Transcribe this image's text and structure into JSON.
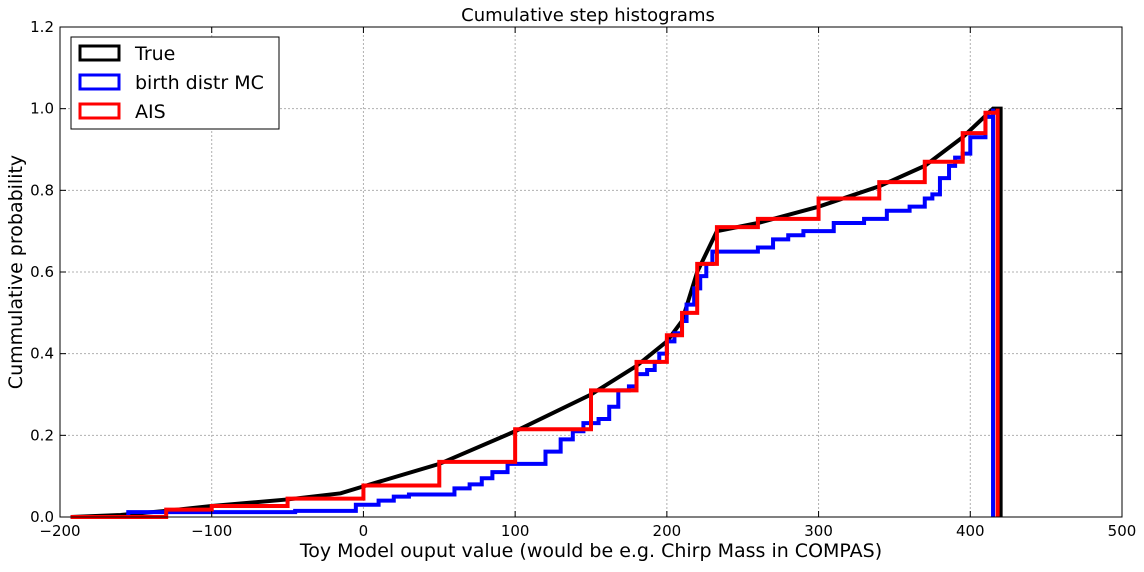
{
  "chart_data": {
    "type": "line",
    "title": "Cumulative step histograms",
    "xlabel": "Toy Model ouput value (would be e.g. Chirp Mass in COMPAS)",
    "ylabel": "Cummulative probability",
    "xlim": [
      -200,
      500
    ],
    "ylim": [
      0,
      1.2
    ],
    "xticks": [
      -200,
      -100,
      0,
      100,
      200,
      300,
      400,
      500
    ],
    "xtick_labels": [
      "−200",
      "−100",
      "0",
      "100",
      "200",
      "300",
      "400",
      "500"
    ],
    "yticks": [
      0,
      0.2,
      0.4,
      0.6,
      0.8,
      1.0,
      1.2
    ],
    "ytick_labels": [
      "0.0",
      "0.2",
      "0.4",
      "0.6",
      "0.8",
      "1.0",
      "1.2"
    ],
    "grid": true,
    "legend_position": "upper-left",
    "series": [
      {
        "name": "True",
        "color": "#000000",
        "step": false,
        "points": [
          [
            -193,
            0
          ],
          [
            -160,
            0.005
          ],
          [
            -130,
            0.015
          ],
          [
            -100,
            0.027
          ],
          [
            -50,
            0.043
          ],
          [
            -15,
            0.058
          ],
          [
            0,
            0.075
          ],
          [
            50,
            0.13
          ],
          [
            100,
            0.21
          ],
          [
            150,
            0.3
          ],
          [
            180,
            0.37
          ],
          [
            200,
            0.43
          ],
          [
            210,
            0.48
          ],
          [
            220,
            0.6
          ],
          [
            233,
            0.7
          ],
          [
            260,
            0.72
          ],
          [
            300,
            0.76
          ],
          [
            340,
            0.81
          ],
          [
            370,
            0.86
          ],
          [
            395,
            0.93
          ],
          [
            415,
            1.0
          ],
          [
            420,
            1.0
          ],
          [
            420,
            0
          ]
        ]
      },
      {
        "name": "birth distr MC",
        "color": "#0000ff",
        "step": true,
        "points": [
          [
            -193,
            0
          ],
          [
            -160,
            0
          ],
          [
            -155,
            0.012
          ],
          [
            -50,
            0.012
          ],
          [
            -45,
            0.015
          ],
          [
            -10,
            0.015
          ],
          [
            -5,
            0.03
          ],
          [
            10,
            0.04
          ],
          [
            20,
            0.05
          ],
          [
            30,
            0.055
          ],
          [
            45,
            0.055
          ],
          [
            60,
            0.07
          ],
          [
            70,
            0.08
          ],
          [
            78,
            0.095
          ],
          [
            85,
            0.11
          ],
          [
            95,
            0.13
          ],
          [
            110,
            0.13
          ],
          [
            120,
            0.16
          ],
          [
            130,
            0.19
          ],
          [
            138,
            0.21
          ],
          [
            145,
            0.23
          ],
          [
            155,
            0.24
          ],
          [
            162,
            0.27
          ],
          [
            168,
            0.31
          ],
          [
            175,
            0.32
          ],
          [
            180,
            0.35
          ],
          [
            187,
            0.36
          ],
          [
            192,
            0.38
          ],
          [
            195,
            0.4
          ],
          [
            200,
            0.43
          ],
          [
            205,
            0.45
          ],
          [
            210,
            0.48
          ],
          [
            213,
            0.52
          ],
          [
            218,
            0.56
          ],
          [
            222,
            0.59
          ],
          [
            226,
            0.62
          ],
          [
            230,
            0.65
          ],
          [
            260,
            0.66
          ],
          [
            270,
            0.68
          ],
          [
            280,
            0.69
          ],
          [
            290,
            0.7
          ],
          [
            305,
            0.7
          ],
          [
            310,
            0.72
          ],
          [
            330,
            0.73
          ],
          [
            345,
            0.75
          ],
          [
            360,
            0.76
          ],
          [
            370,
            0.78
          ],
          [
            375,
            0.79
          ],
          [
            380,
            0.83
          ],
          [
            386,
            0.86
          ],
          [
            390,
            0.88
          ],
          [
            395,
            0.89
          ],
          [
            400,
            0.93
          ],
          [
            410,
            0.98
          ],
          [
            415,
            1.0
          ],
          [
            415,
            0
          ]
        ]
      },
      {
        "name": "AIS",
        "color": "#ff0000",
        "step": true,
        "points": [
          [
            -193,
            0
          ],
          [
            -130,
            0.018
          ],
          [
            -100,
            0.027
          ],
          [
            -50,
            0.045
          ],
          [
            0,
            0.077
          ],
          [
            50,
            0.135
          ],
          [
            100,
            0.215
          ],
          [
            150,
            0.31
          ],
          [
            180,
            0.38
          ],
          [
            200,
            0.445
          ],
          [
            210,
            0.5
          ],
          [
            220,
            0.62
          ],
          [
            233,
            0.71
          ],
          [
            260,
            0.73
          ],
          [
            300,
            0.78
          ],
          [
            340,
            0.82
          ],
          [
            370,
            0.87
          ],
          [
            395,
            0.94
          ],
          [
            410,
            0.99
          ],
          [
            418,
            1.0
          ],
          [
            418,
            0
          ]
        ]
      }
    ]
  }
}
